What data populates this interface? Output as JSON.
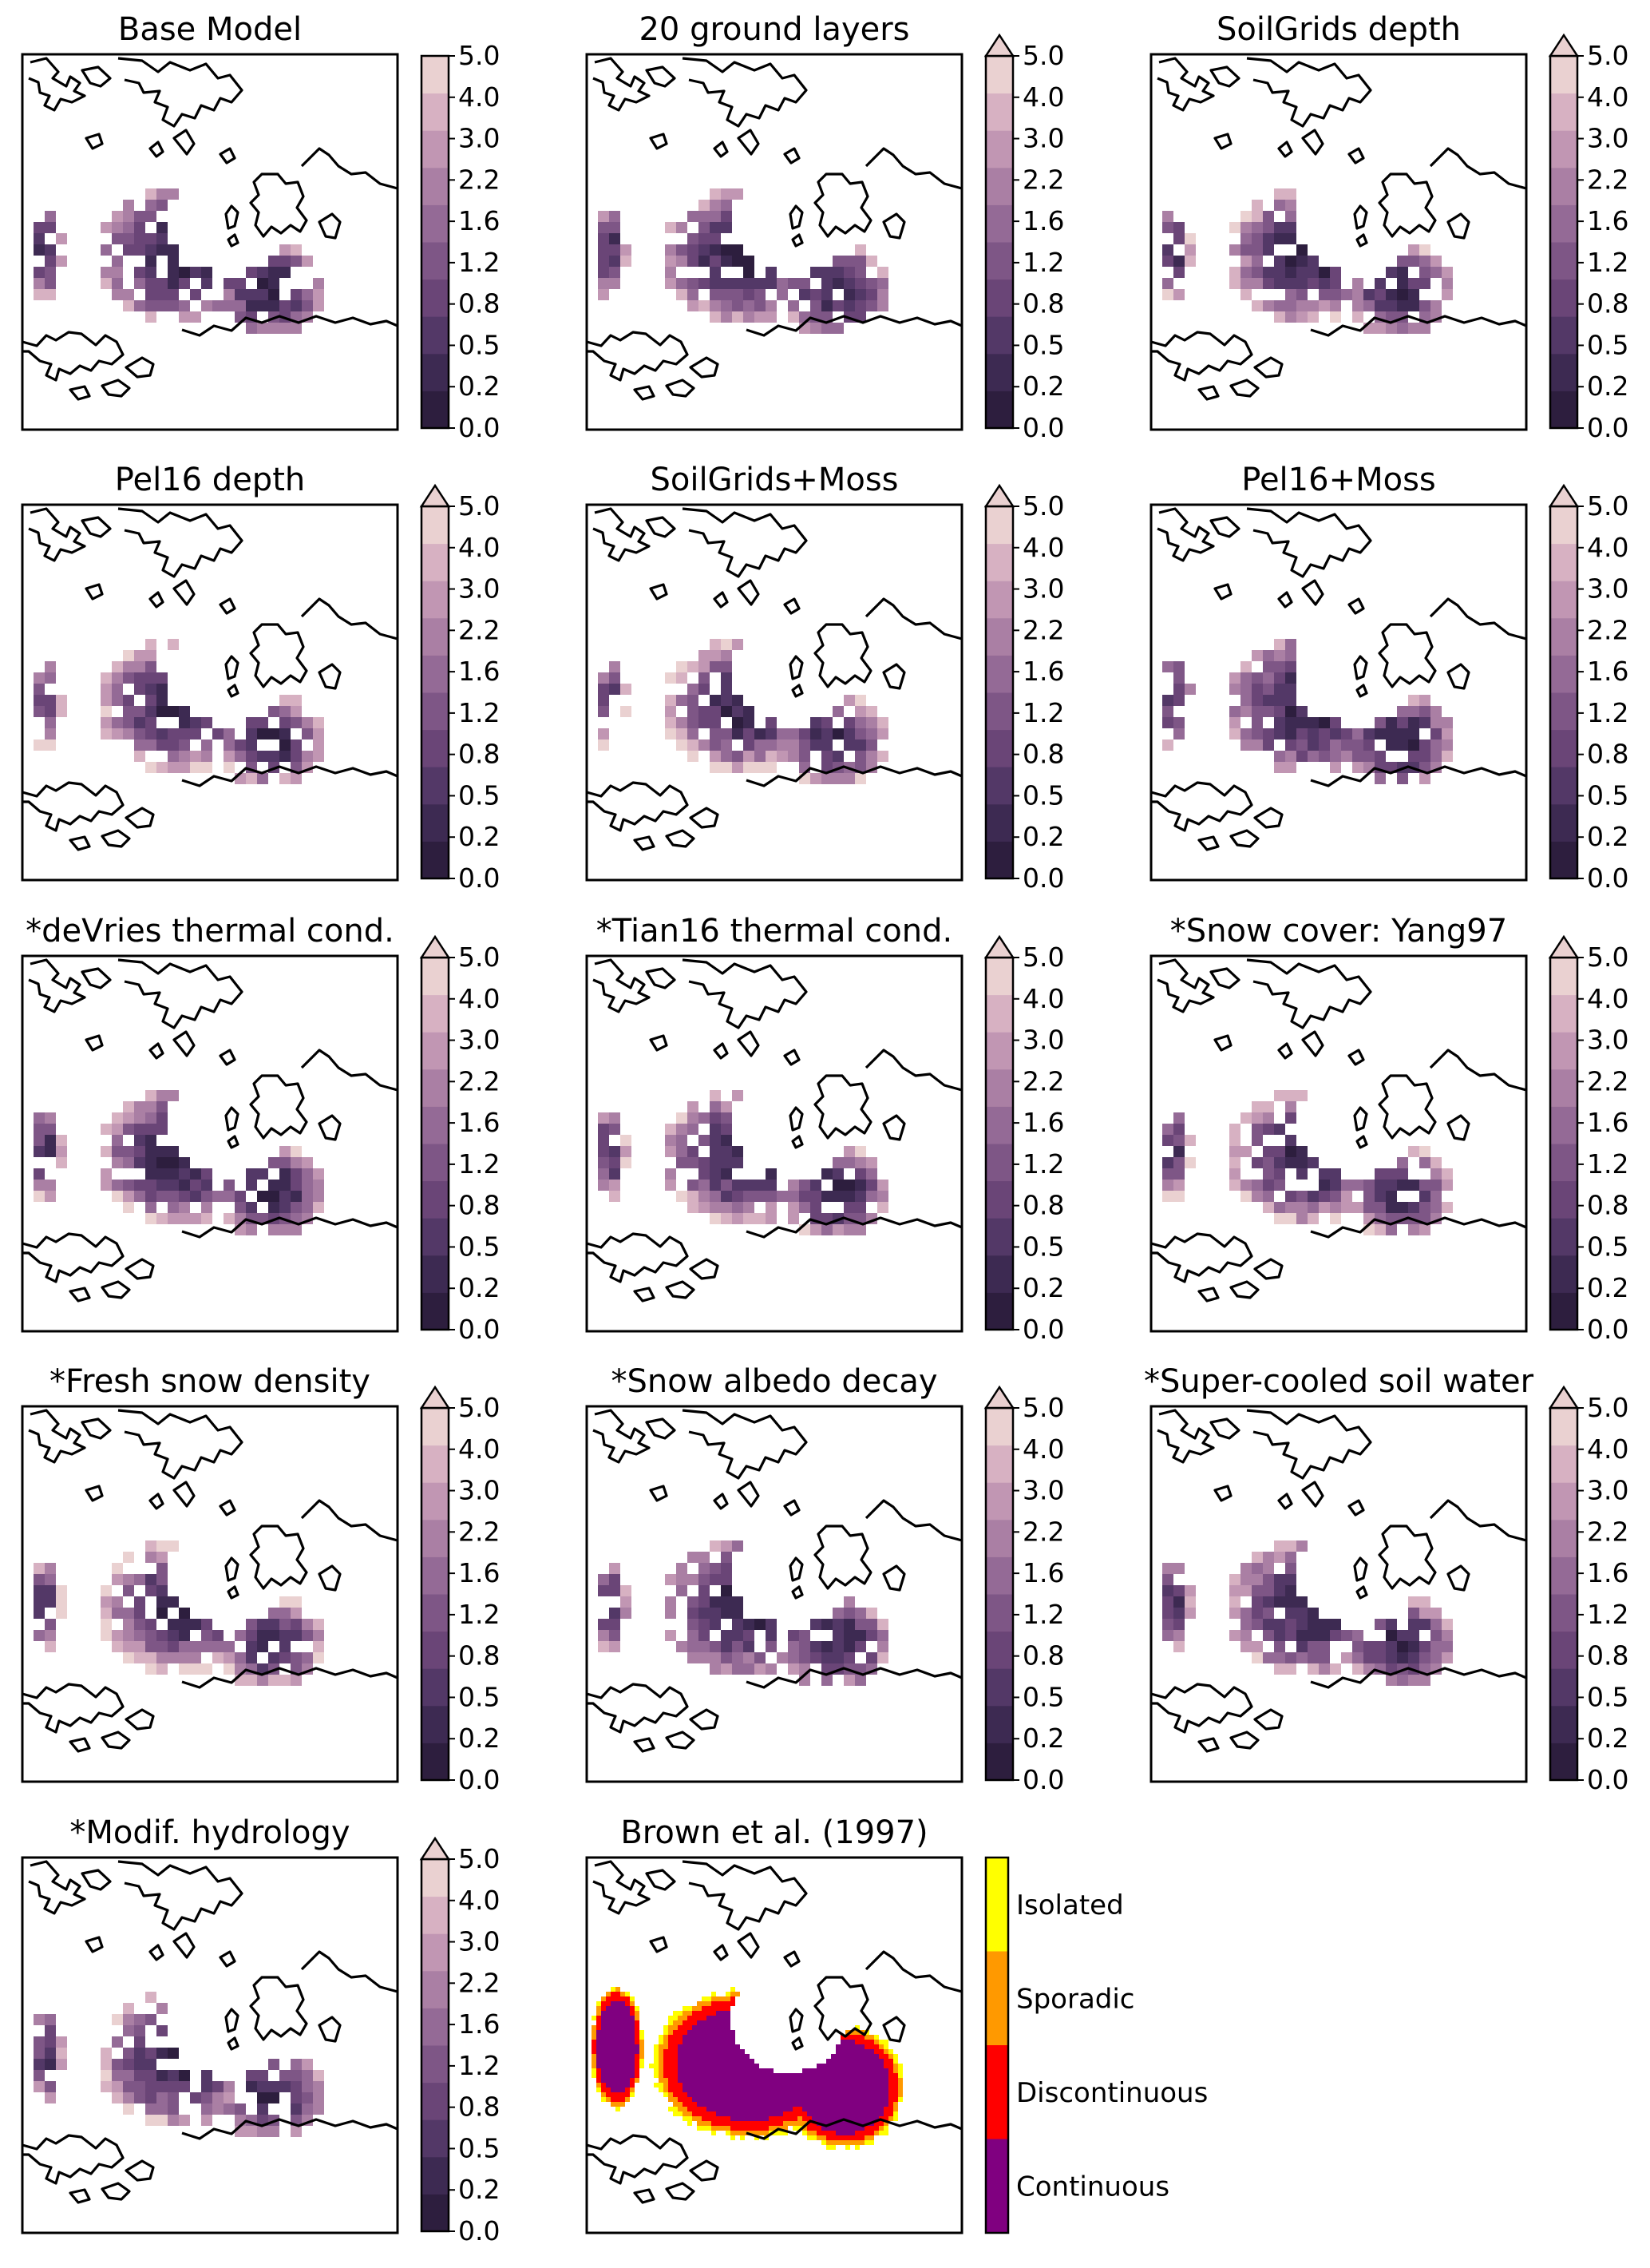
{
  "figure": {
    "colorbar_ticks": [
      "0.0",
      "0.2",
      "0.5",
      "0.8",
      "1.2",
      "1.6",
      "2.2",
      "3.0",
      "4.0",
      "5.0"
    ],
    "colorbar_colors": [
      "#2d1e3e",
      "#3d2a52",
      "#533867",
      "#6a4577",
      "#7e5686",
      "#946a96",
      "#aa7fa4",
      "#c196b3",
      "#d7b1c2",
      "#ead1d1"
    ],
    "land_colors": {
      "Continuous": "#800080",
      "Discontinuous": "#ff0000",
      "Sporadic": "#ff9900",
      "Isolated": "#ffff00"
    },
    "coastline_color": "#000000"
  },
  "chart_data": [
    {
      "type": "heatmap",
      "title": "Base Model",
      "colorbar": "0.0 to 5.0",
      "extend": "neither"
    },
    {
      "type": "heatmap",
      "title": "20 ground layers",
      "colorbar": "0.0 to 5.0",
      "extend": "max"
    },
    {
      "type": "heatmap",
      "title": "SoilGrids depth",
      "colorbar": "0.0 to 5.0",
      "extend": "max"
    },
    {
      "type": "heatmap",
      "title": "Pel16 depth",
      "colorbar": "0.0 to 5.0",
      "extend": "max"
    },
    {
      "type": "heatmap",
      "title": "SoilGrids+Moss",
      "colorbar": "0.0 to 5.0",
      "extend": "max"
    },
    {
      "type": "heatmap",
      "title": "Pel16+Moss",
      "colorbar": "0.0 to 5.0",
      "extend": "max"
    },
    {
      "type": "heatmap",
      "title": "*deVries thermal cond.",
      "colorbar": "0.0 to 5.0",
      "extend": "max"
    },
    {
      "type": "heatmap",
      "title": "*Tian16 thermal cond.",
      "colorbar": "0.0 to 5.0",
      "extend": "max"
    },
    {
      "type": "heatmap",
      "title": "*Snow cover: Yang97",
      "colorbar": "0.0 to 5.0",
      "extend": "max"
    },
    {
      "type": "heatmap",
      "title": "*Fresh snow density",
      "colorbar": "0.0 to 5.0",
      "extend": "max"
    },
    {
      "type": "heatmap",
      "title": "*Snow albedo decay",
      "colorbar": "0.0 to 5.0",
      "extend": "max"
    },
    {
      "type": "heatmap",
      "title": "*Super-cooled soil water",
      "colorbar": "0.0 to 5.0",
      "extend": "max"
    },
    {
      "type": "heatmap",
      "title": "*Modif. hydrology",
      "colorbar": "0.0 to 5.0",
      "extend": "max"
    },
    {
      "type": "heatmap",
      "title": "Brown et al. (1997)",
      "categories": [
        "Isolated",
        "Sporadic",
        "Discontinuous",
        "Continuous"
      ]
    }
  ]
}
